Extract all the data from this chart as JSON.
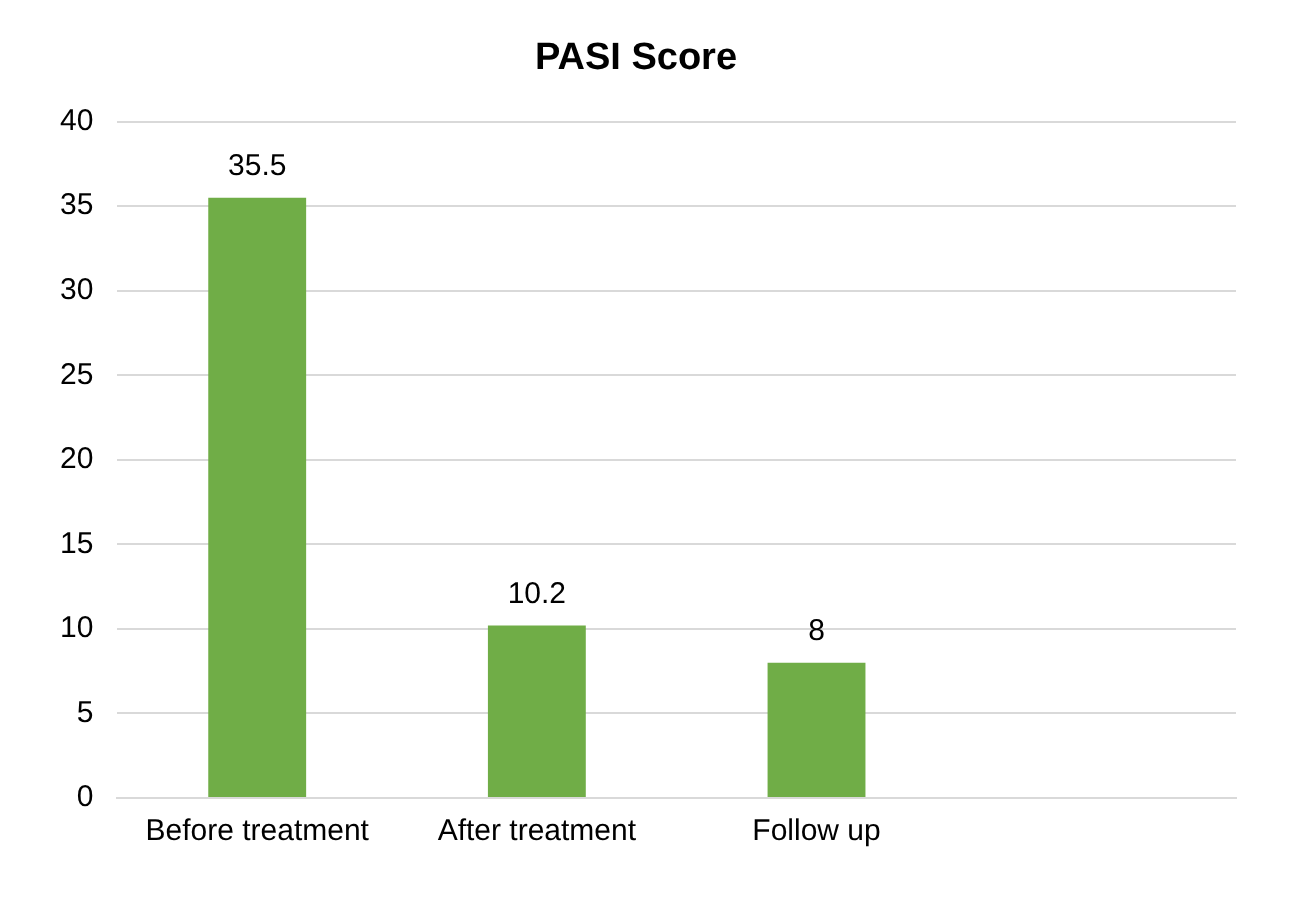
{
  "chart_data": {
    "type": "bar",
    "title": "PASI Score",
    "categories": [
      "Before treatment",
      "After treatment",
      "Follow up",
      null
    ],
    "values": [
      35.5,
      10.2,
      8,
      null
    ],
    "color": "#70ad47",
    "ylim": [
      0,
      40
    ],
    "yticks": [
      0,
      5,
      10,
      15,
      20,
      25,
      30,
      35,
      40
    ],
    "grid": "y",
    "data_labels": true,
    "legend": false
  }
}
